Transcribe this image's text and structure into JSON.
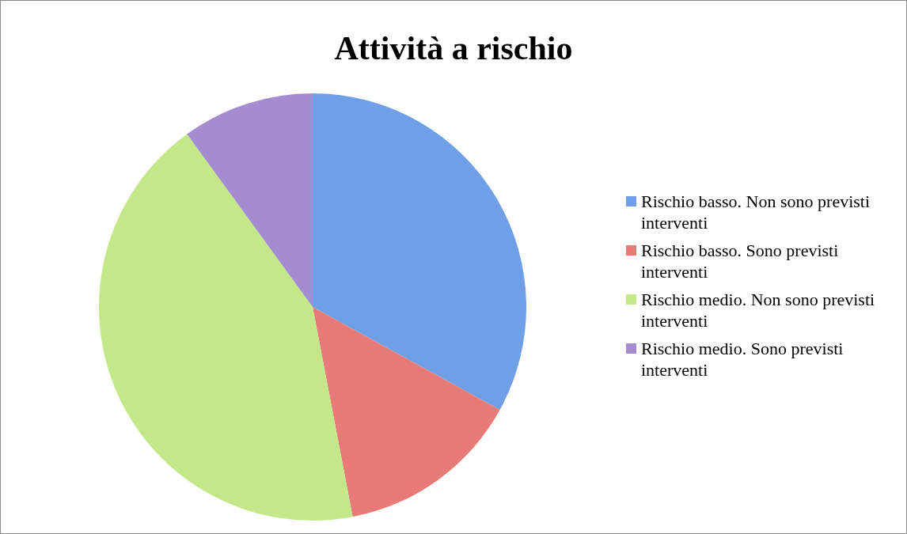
{
  "chart_data": {
    "type": "pie",
    "title": "Attività a rischio",
    "categories": [
      "Rischio basso. Non sono previsti interventi",
      "Rischio basso. Sono previsti interventi",
      "Rischio medio. Non sono previsti interventi",
      "Rischio medio. Sono previsti interventi"
    ],
    "values": [
      33,
      14,
      43,
      10
    ],
    "colors": [
      "#6f9fe6",
      "#e87a78",
      "#c4e889",
      "#a58bd0"
    ],
    "legend": "right"
  }
}
